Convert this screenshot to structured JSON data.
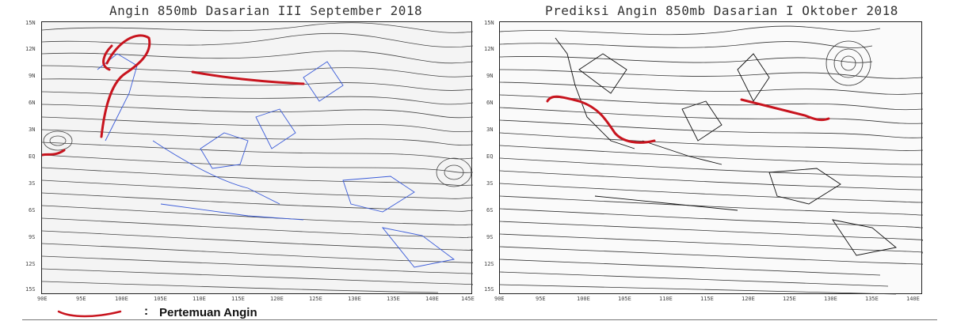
{
  "left_panel": {
    "title": "Angin 850mb Dasarian III September 2018",
    "y_labels": [
      "15N",
      "12N",
      "9N",
      "6N",
      "3N",
      "EQ",
      "3S",
      "6S",
      "9S",
      "12S",
      "15S"
    ],
    "x_labels": [
      "90E",
      "95E",
      "100E",
      "105E",
      "110E",
      "115E",
      "120E",
      "125E",
      "130E",
      "135E",
      "140E",
      "145E"
    ]
  },
  "right_panel": {
    "title": "Prediksi Angin 850mb Dasarian I Oktober 2018",
    "y_labels": [
      "15N",
      "12N",
      "9N",
      "6N",
      "3N",
      "EQ",
      "3S",
      "6S",
      "9S",
      "12S",
      "15S"
    ],
    "x_labels": [
      "90E",
      "95E",
      "100E",
      "105E",
      "110E",
      "115E",
      "120E",
      "125E",
      "130E",
      "135E",
      "140E"
    ]
  },
  "legend": {
    "colon": ":",
    "label": "Pertemuan Angin"
  },
  "colors": {
    "convergence_line": "#c8141e",
    "coastline_left": "#3a5bd9",
    "streamline": "#333333"
  }
}
